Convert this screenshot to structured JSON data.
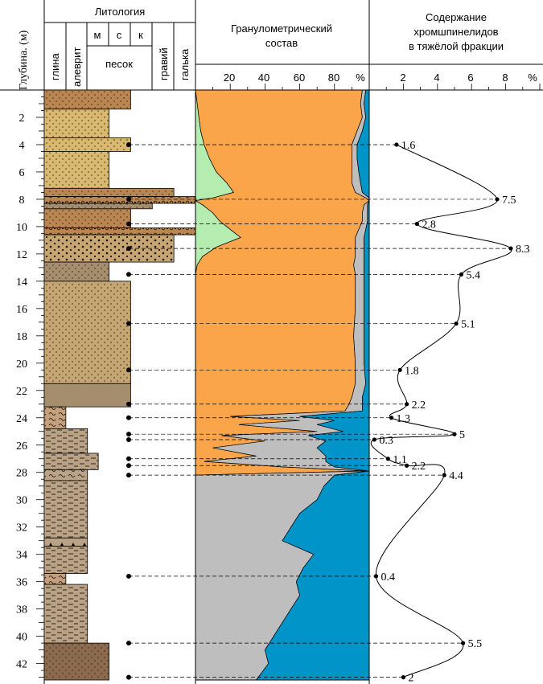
{
  "header": {
    "depth_title": "Глубина. (м)",
    "lithology_title": "Литология",
    "lithology_columns": [
      "глина",
      "алеврит",
      "м",
      "с",
      "к",
      "песок",
      "гравий",
      "галька"
    ],
    "grain_title_line1": "Гранулометрический",
    "grain_title_line2": "состав",
    "chromite_title_line1": "Содержание",
    "chromite_title_line2": "хромшпинелидов",
    "chromite_title_line3": "в тяжёлой фракции"
  },
  "depth_axis": {
    "ticks": [
      "2",
      "4",
      "6",
      "8",
      "10",
      "12",
      "14",
      "16",
      "18",
      "20",
      "22",
      "24",
      "26",
      "28",
      "30",
      "32",
      "34",
      "36",
      "38",
      "40",
      "42"
    ],
    "range": [
      0,
      43.2
    ]
  },
  "grain_axis": {
    "ticks": [
      "20",
      "40",
      "60",
      "80"
    ],
    "unit": "%"
  },
  "chromite_axis": {
    "ticks": [
      "2",
      "4",
      "6",
      "8"
    ],
    "unit": "%"
  },
  "colors": {
    "sand_orange": "#FBA54B",
    "clay_blue": "#0094C8",
    "silt_gray": "#BEBEBE",
    "gravel_green": "#B5EDB0",
    "lith_sand_light": "#D9B970",
    "lith_sand_brown": "#B98651",
    "lith_sand_tan": "#C5A572",
    "lith_gray_brown": "#A58E6E",
    "lith_dark_brown": "#8C6A4E",
    "lith_clay": "#C4A07C",
    "lith_silt": "#B9A286"
  },
  "chart_data": {
    "type": "line",
    "title": "Содержание хромшпинелидов в тяжёлой фракции",
    "xlabel": "%",
    "ylabel": "Глубина. (м)",
    "ylim": [
      0,
      43.2
    ],
    "xlim": [
      0,
      10
    ],
    "samples": [
      {
        "depth": 4.0,
        "value": 1.6,
        "label": "1.6"
      },
      {
        "depth": 8.0,
        "value": 7.5,
        "label": "7.5"
      },
      {
        "depth": 9.8,
        "value": 2.8,
        "label": "2.8"
      },
      {
        "depth": 11.6,
        "value": 8.3,
        "label": "8.3"
      },
      {
        "depth": 13.5,
        "value": 5.4,
        "label": "5.4"
      },
      {
        "depth": 17.1,
        "value": 5.1,
        "label": "5.1"
      },
      {
        "depth": 20.5,
        "value": 1.8,
        "label": "1.8"
      },
      {
        "depth": 23.0,
        "value": 2.2,
        "label": "2.2"
      },
      {
        "depth": 24.0,
        "value": 1.3,
        "label": "1.3"
      },
      {
        "depth": 25.2,
        "value": 5.0,
        "label": "5"
      },
      {
        "depth": 25.6,
        "value": 0.3,
        "label": "0.3"
      },
      {
        "depth": 27.0,
        "value": 1.1,
        "label": "1.1"
      },
      {
        "depth": 27.5,
        "value": 2.2,
        "label": "2.2"
      },
      {
        "depth": 28.2,
        "value": 4.4,
        "label": "4.4"
      },
      {
        "depth": 35.6,
        "value": 0.4,
        "label": "0.4"
      },
      {
        "depth": 40.5,
        "value": 5.5,
        "label": "5.5"
      },
      {
        "depth": 43.0,
        "value": 2.0,
        "label": "2"
      }
    ],
    "grain_size": {
      "type": "area",
      "depths": [
        0,
        1,
        2,
        3,
        4,
        5,
        6,
        6.8,
        7.5,
        7.9,
        8.1,
        8.4,
        9.0,
        9.6,
        10.2,
        10.8,
        11.5,
        12.2,
        12.8,
        13.5,
        14.5,
        16,
        18,
        20,
        21.5,
        22.5,
        23.1,
        23.5,
        23.9,
        24.2,
        24.5,
        25.0,
        25.3,
        25.7,
        26.2,
        26.8,
        27.2,
        27.6,
        27.9,
        28.2,
        29,
        30,
        31,
        32,
        33,
        34,
        35,
        36,
        37,
        38,
        39,
        40,
        41,
        42,
        43.2
      ],
      "green": [
        0,
        1,
        2,
        3,
        5,
        8,
        12,
        18,
        22,
        10,
        0,
        4,
        10,
        14,
        20,
        26,
        12,
        4,
        1,
        0,
        0,
        0,
        0,
        0,
        0,
        0,
        0,
        0,
        0,
        0,
        0,
        0,
        0,
        0,
        0,
        0,
        0,
        0,
        0,
        0,
        0,
        0,
        0,
        0,
        0,
        0,
        0,
        0,
        0,
        0,
        0,
        0,
        0,
        0,
        0
      ],
      "orange": [
        96,
        94,
        94,
        90,
        85,
        82,
        78,
        72,
        70,
        88,
        100,
        93,
        86,
        82,
        74,
        66,
        80,
        88,
        90,
        92,
        92,
        92,
        91,
        92,
        92,
        90,
        88,
        86,
        20,
        60,
        25,
        70,
        15,
        40,
        10,
        35,
        5,
        50,
        98,
        0,
        0,
        0,
        0,
        0,
        0,
        0,
        0,
        0,
        0,
        0,
        0,
        0,
        0,
        0,
        0
      ],
      "gray": [
        2,
        2,
        2,
        3,
        3,
        3,
        4,
        5,
        4,
        2,
        0,
        2,
        3,
        3,
        4,
        5,
        5,
        5,
        6,
        5,
        5,
        5,
        6,
        5,
        6,
        6,
        8,
        10,
        40,
        20,
        45,
        15,
        50,
        35,
        60,
        40,
        70,
        30,
        2,
        80,
        74,
        70,
        60,
        55,
        50,
        68,
        62,
        58,
        60,
        55,
        50,
        45,
        40,
        42,
        35
      ],
      "blue": [
        2,
        3,
        2,
        4,
        7,
        7,
        6,
        5,
        4,
        0,
        0,
        1,
        1,
        1,
        2,
        3,
        3,
        3,
        3,
        3,
        3,
        3,
        3,
        3,
        2,
        4,
        4,
        4,
        40,
        20,
        30,
        15,
        35,
        25,
        30,
        25,
        25,
        20,
        0,
        20,
        26,
        30,
        40,
        45,
        50,
        32,
        38,
        42,
        40,
        45,
        50,
        55,
        60,
        58,
        65
      ]
    }
  },
  "lithology": {
    "layers": [
      {
        "top": 0.0,
        "bottom": 1.4,
        "width": 4,
        "color": "lith_sand_brown",
        "pattern": "dots"
      },
      {
        "top": 1.4,
        "bottom": 3.5,
        "width": 3,
        "color": "lith_sand_light",
        "pattern": "dots"
      },
      {
        "top": 3.5,
        "bottom": 4.5,
        "width": 4,
        "color": "lith_sand_light",
        "pattern": "dots"
      },
      {
        "top": 4.5,
        "bottom": 7.2,
        "width": 3,
        "color": "lith_sand_light",
        "pattern": "dots"
      },
      {
        "top": 7.2,
        "bottom": 7.8,
        "width": 6,
        "color": "lith_sand_brown",
        "pattern": "dots"
      },
      {
        "top": 7.8,
        "bottom": 8.3,
        "width": 7,
        "color": "lith_sand_brown",
        "pattern": "pebbles"
      },
      {
        "top": 8.3,
        "bottom": 8.7,
        "width": 5,
        "color": "lith_gray_brown",
        "pattern": "dots"
      },
      {
        "top": 8.7,
        "bottom": 10.1,
        "width": 4,
        "color": "lith_sand_brown",
        "pattern": "dots"
      },
      {
        "top": 10.1,
        "bottom": 10.6,
        "width": 7,
        "color": "lith_sand_brown",
        "pattern": "pebbles"
      },
      {
        "top": 10.6,
        "bottom": 12.6,
        "width": 6,
        "color": "lith_sand_tan",
        "pattern": "coarse"
      },
      {
        "top": 12.6,
        "bottom": 14.0,
        "width": 3,
        "color": "lith_gray_brown",
        "pattern": "dots"
      },
      {
        "top": 14.0,
        "bottom": 21.5,
        "width": 4,
        "color": "lith_sand_tan",
        "pattern": "dots"
      },
      {
        "top": 21.5,
        "bottom": 23.2,
        "width": 4,
        "color": "lith_gray_brown",
        "pattern": "none"
      },
      {
        "top": 23.2,
        "bottom": 24.8,
        "width": 1,
        "color": "lith_clay",
        "pattern": "wavy"
      },
      {
        "top": 24.8,
        "bottom": 26.6,
        "width": 2,
        "color": "lith_silt",
        "pattern": "dashes"
      },
      {
        "top": 26.6,
        "bottom": 27.8,
        "width": 2.5,
        "color": "lith_silt",
        "pattern": "dashes"
      },
      {
        "top": 27.8,
        "bottom": 28.6,
        "width": 2,
        "color": "lith_silt",
        "pattern": "wavy"
      },
      {
        "top": 28.6,
        "bottom": 32.8,
        "width": 2,
        "color": "lith_silt",
        "pattern": "dashes"
      },
      {
        "top": 32.8,
        "bottom": 33.4,
        "width": 2,
        "color": "lith_silt",
        "pattern": "triangles"
      },
      {
        "top": 33.4,
        "bottom": 35.4,
        "width": 2,
        "color": "lith_silt",
        "pattern": "dashes"
      },
      {
        "top": 35.4,
        "bottom": 36.2,
        "width": 1,
        "color": "lith_clay",
        "pattern": "wavy"
      },
      {
        "top": 36.2,
        "bottom": 40.5,
        "width": 2,
        "color": "lith_silt",
        "pattern": "dashes"
      },
      {
        "top": 40.5,
        "bottom": 43.2,
        "width": 3,
        "color": "lith_dark_brown",
        "pattern": "dots"
      }
    ]
  }
}
